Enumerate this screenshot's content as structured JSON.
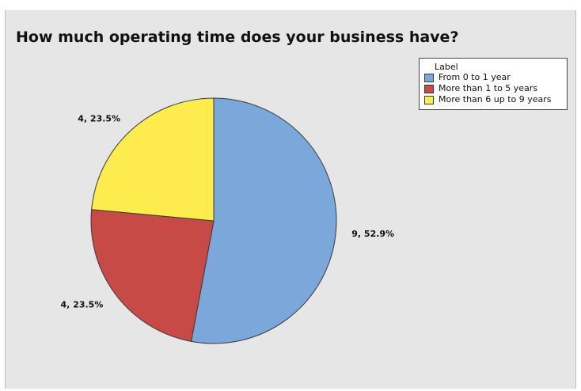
{
  "chart_data": {
    "type": "pie",
    "title": "How much operating time does your business have?",
    "legend": {
      "title": "Label",
      "placement": "top-right"
    },
    "slices": [
      {
        "label": "From 0 to 1 year",
        "value": 9,
        "percent_label": "9, 52.9%",
        "color": "#7ba7db"
      },
      {
        "label": "More than 1 to 5 years",
        "value": 4,
        "percent_label": "4, 23.5%",
        "color": "#c84a46"
      },
      {
        "label": "More than 6 up to 9 years",
        "value": 4,
        "percent_label": "4, 23.5%",
        "color": "#feec4f"
      }
    ],
    "start_angle_deg": 0,
    "direction": "clockwise"
  },
  "colors": {
    "background": "#e6e6e6",
    "slice_stroke": "#3a3a3a"
  }
}
